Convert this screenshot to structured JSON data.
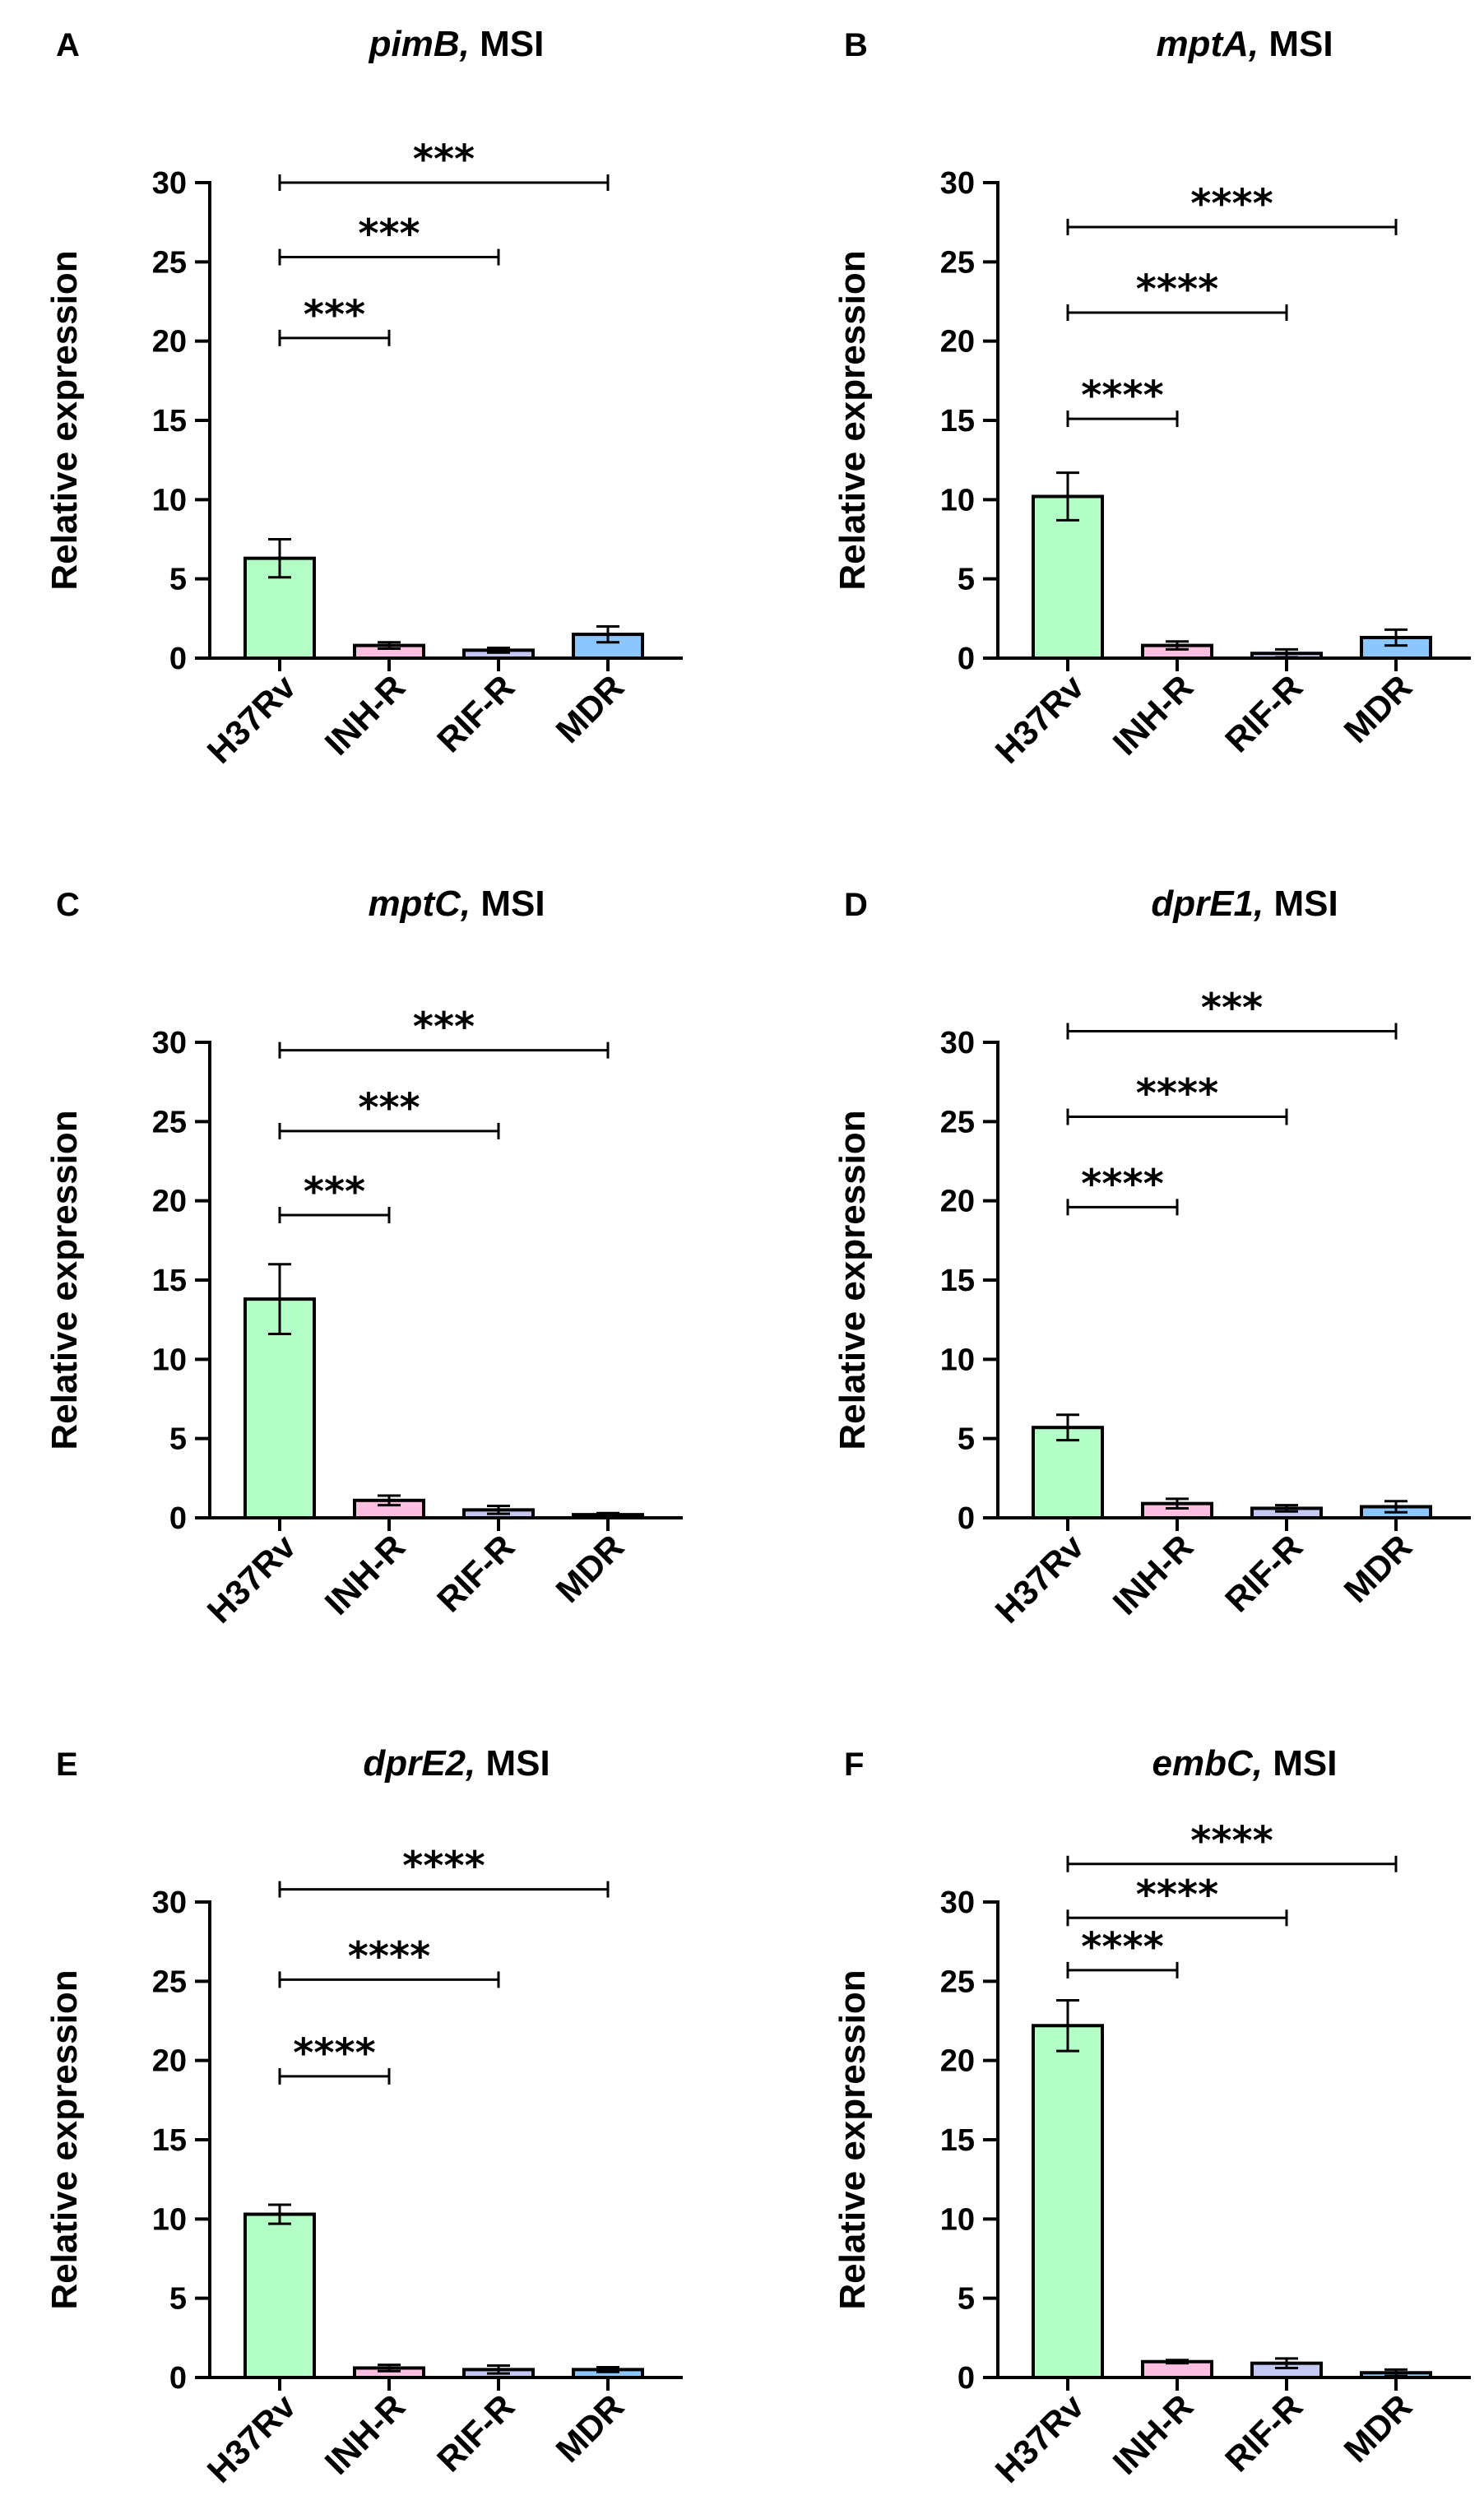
{
  "chart_data": [
    {
      "panel": "A",
      "type": "bar",
      "title_gene": "pimB,",
      "title_suffix": " MSI",
      "categories": [
        "H37Rv",
        "INH-R",
        "RIF-R",
        "MDR"
      ],
      "values": [
        6.3,
        0.8,
        0.5,
        1.5
      ],
      "errors": [
        1.2,
        0.2,
        0.15,
        0.5
      ],
      "ylabel": "Relative expression",
      "ylim": [
        0,
        30
      ],
      "yticks": [
        "0",
        "5",
        "10",
        "15",
        "20",
        "25",
        "30"
      ],
      "significance": [
        {
          "to": "INH-R",
          "label": "***",
          "level": 20.2
        },
        {
          "to": "RIF-R",
          "label": "***",
          "level": 25.3
        },
        {
          "to": "MDR",
          "label": "***",
          "level": 30.0
        }
      ]
    },
    {
      "panel": "B",
      "type": "bar",
      "title_gene": "mptA,",
      "title_suffix": " MSI",
      "categories": [
        "H37Rv",
        "INH-R",
        "RIF-R",
        "MDR"
      ],
      "values": [
        10.2,
        0.8,
        0.3,
        1.3
      ],
      "errors": [
        1.5,
        0.25,
        0.25,
        0.5
      ],
      "ylabel": "Relative expression",
      "ylim": [
        0,
        30
      ],
      "yticks": [
        "0",
        "5",
        "10",
        "15",
        "20",
        "25",
        "30"
      ],
      "significance": [
        {
          "to": "INH-R",
          "label": "****",
          "level": 15.1
        },
        {
          "to": "RIF-R",
          "label": "****",
          "level": 21.8
        },
        {
          "to": "MDR",
          "label": "****",
          "level": 27.2
        }
      ]
    },
    {
      "panel": "C",
      "type": "bar",
      "title_gene": "mptC,",
      "title_suffix": " MSI",
      "categories": [
        "H37Rv",
        "INH-R",
        "RIF-R",
        "MDR"
      ],
      "values": [
        13.8,
        1.1,
        0.5,
        0.2
      ],
      "errors": [
        2.2,
        0.3,
        0.25,
        0.1
      ],
      "ylabel": "Relative expression",
      "ylim": [
        0,
        30
      ],
      "yticks": [
        "0",
        "5",
        "10",
        "15",
        "20",
        "25",
        "30"
      ],
      "significance": [
        {
          "to": "INH-R",
          "label": "***",
          "level": 19.1
        },
        {
          "to": "RIF-R",
          "label": "***",
          "level": 24.4
        },
        {
          "to": "MDR",
          "label": "***",
          "level": 29.5
        }
      ]
    },
    {
      "panel": "D",
      "type": "bar",
      "title_gene": "dprE1,",
      "title_suffix": " MSI",
      "categories": [
        "H37Rv",
        "INH-R",
        "RIF-R",
        "MDR"
      ],
      "values": [
        5.7,
        0.9,
        0.6,
        0.7
      ],
      "errors": [
        0.8,
        0.3,
        0.2,
        0.35
      ],
      "ylabel": "Relative expression",
      "ylim": [
        0,
        30
      ],
      "yticks": [
        "0",
        "5",
        "10",
        "15",
        "20",
        "25",
        "30"
      ],
      "significance": [
        {
          "to": "INH-R",
          "label": "****",
          "level": 19.6
        },
        {
          "to": "RIF-R",
          "label": "****",
          "level": 25.3
        },
        {
          "to": "MDR",
          "label": "***",
          "level": 30.7
        }
      ]
    },
    {
      "panel": "E",
      "type": "bar",
      "title_gene": "dprE2,",
      "title_suffix": " MSI",
      "categories": [
        "H37Rv",
        "INH-R",
        "RIF-R",
        "MDR"
      ],
      "values": [
        10.3,
        0.6,
        0.5,
        0.5
      ],
      "errors": [
        0.6,
        0.2,
        0.25,
        0.15
      ],
      "ylabel": "Relative expression",
      "ylim": [
        0,
        30
      ],
      "yticks": [
        "0",
        "5",
        "10",
        "15",
        "20",
        "25",
        "30"
      ],
      "significance": [
        {
          "to": "INH-R",
          "label": "****",
          "level": 19.0
        },
        {
          "to": "RIF-R",
          "label": "****",
          "level": 25.1
        },
        {
          "to": "MDR",
          "label": "****",
          "level": 30.8
        }
      ]
    },
    {
      "panel": "F",
      "type": "bar",
      "title_gene": "embC,",
      "title_suffix": " MSI",
      "categories": [
        "H37Rv",
        "INH-R",
        "RIF-R",
        "MDR"
      ],
      "values": [
        22.2,
        1.0,
        0.9,
        0.3
      ],
      "errors": [
        1.6,
        0.1,
        0.3,
        0.2
      ],
      "ylabel": "Relative expression",
      "ylim": [
        0,
        30
      ],
      "yticks": [
        "0",
        "5",
        "10",
        "15",
        "20",
        "25",
        "30"
      ],
      "significance": [
        {
          "to": "INH-R",
          "label": "****",
          "level": 25.7
        },
        {
          "to": "RIF-R",
          "label": "****",
          "level": 29.0
        },
        {
          "to": "MDR",
          "label": "****",
          "level": 32.4
        }
      ]
    }
  ],
  "colors": {
    "H37Rv": "#b3fdc7",
    "INH-R": "#fcbfe1",
    "RIF-R": "#c4c9f3",
    "MDR": "#8cc6ff",
    "axis": "#000000"
  }
}
